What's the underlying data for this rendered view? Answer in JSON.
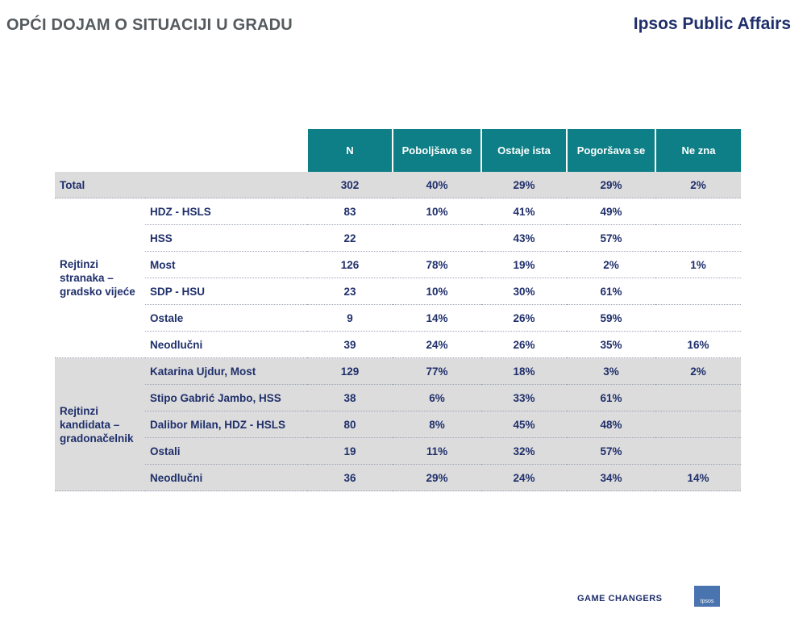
{
  "header": {
    "title": "OPĆI DOJAM O SITUACIJI U GRADU",
    "brand": "Ipsos Public Affairs"
  },
  "table": {
    "columns": [
      "N",
      "Poboljšava se",
      "Ostaje ista",
      "Pogoršava se",
      "Ne zna"
    ],
    "total": {
      "label": "Total",
      "values": [
        "302",
        "40%",
        "29%",
        "29%",
        "2%"
      ]
    },
    "group1": {
      "label": "Rejtinzi stranaka – gradsko vijeće",
      "rows": [
        {
          "name": "HDZ - HSLS",
          "values": [
            "83",
            "10%",
            "41%",
            "49%",
            ""
          ]
        },
        {
          "name": "HSS",
          "values": [
            "22",
            "",
            "43%",
            "57%",
            ""
          ]
        },
        {
          "name": "Most",
          "values": [
            "126",
            "78%",
            "19%",
            "2%",
            "1%"
          ]
        },
        {
          "name": "SDP - HSU",
          "values": [
            "23",
            "10%",
            "30%",
            "61%",
            ""
          ]
        },
        {
          "name": "Ostale",
          "values": [
            "9",
            "14%",
            "26%",
            "59%",
            ""
          ]
        },
        {
          "name": "Neodlučni",
          "values": [
            "39",
            "24%",
            "26%",
            "35%",
            "16%"
          ]
        }
      ]
    },
    "group2": {
      "label": "Rejtinzi kandidata – gradonačelnik",
      "rows": [
        {
          "name": "Katarina Ujdur, Most",
          "values": [
            "129",
            "77%",
            "18%",
            "3%",
            "2%"
          ]
        },
        {
          "name": "Stipo Gabrić Jambo, HSS",
          "values": [
            "38",
            "6%",
            "33%",
            "61%",
            ""
          ]
        },
        {
          "name": "Dalibor Milan, HDZ - HSLS",
          "values": [
            "80",
            "8%",
            "45%",
            "48%",
            ""
          ]
        },
        {
          "name": "Ostali",
          "values": [
            "19",
            "11%",
            "32%",
            "57%",
            ""
          ]
        },
        {
          "name": "Neodlučni",
          "values": [
            "36",
            "29%",
            "24%",
            "34%",
            "14%"
          ]
        }
      ]
    }
  },
  "footer": {
    "tagline": "GAME CHANGERS",
    "logo_text": "Ipsos"
  },
  "colors": {
    "header_teal": "#0e7f86",
    "text_navy": "#1f2f6b",
    "row_gray": "#dcdcdc"
  }
}
